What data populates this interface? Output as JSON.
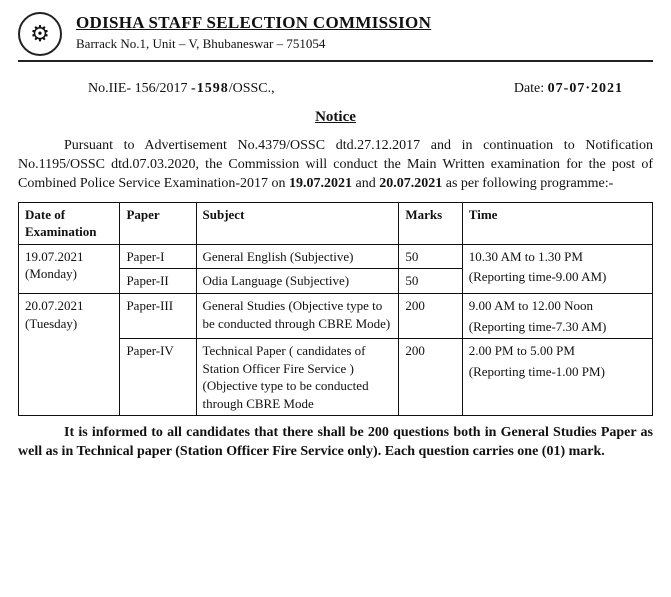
{
  "header": {
    "org": "ODISHA STAFF SELECTION COMMISSION",
    "address": "Barrack No.1, Unit – V, Bhubaneswar – 751054"
  },
  "ref": {
    "left_prefix": "No.IIE- 156/2017",
    "left_hand": "-1598",
    "left_suffix": "/OSSC.,",
    "date_label": "Date:",
    "date_value": "07-07·2021"
  },
  "notice_label": "Notice",
  "body": {
    "para_parts": {
      "p1": "Pursuant to Advertisement No.4379/OSSC dtd.27.12.2017 and  in continuation to Notification No.1195/OSSC dtd.07.03.2020, the Commission will conduct the Main Written examination for the post of Combined Police Service Examination-2017 on ",
      "d1": "19.07.2021",
      "mid": " and ",
      "d2": "20.07.2021",
      "p2": " as per following programme:-"
    }
  },
  "table": {
    "headers": {
      "c1": "Date of Examination",
      "c2": "Paper",
      "c3": "Subject",
      "c4": "Marks",
      "c5": "Time"
    },
    "col_widths": [
      "16%",
      "12%",
      "32%",
      "10%",
      "30%"
    ],
    "rows": [
      {
        "date": "19.07.2021 (Monday)",
        "paper": "Paper-I",
        "subject": "General English (Subjective)",
        "marks": "50",
        "time_main": "10.30 AM to 1.30 PM",
        "time_rep": "(Reporting time-9.00 AM)",
        "date_rowspan": 2,
        "time_rowspan": 2
      },
      {
        "paper": "Paper-II",
        "subject": "Odia Language (Subjective)",
        "marks": "50"
      },
      {
        "date": "20.07.2021 (Tuesday)",
        "paper": "Paper-III",
        "subject": "General Studies (Objective type to be conducted through CBRE Mode)",
        "marks": "200",
        "time_main": "9.00 AM to 12.00 Noon",
        "time_rep": "(Reporting time-7.30 AM)",
        "date_rowspan": 2
      },
      {
        "paper": "Paper-IV",
        "subject": "Technical Paper ( candidates of Station Officer Fire Service ) (Objective type to be conducted through CBRE Mode",
        "marks": "200",
        "time_main": "2.00 PM to 5.00 PM",
        "time_rep": "(Reporting time-1.00 PM)"
      }
    ]
  },
  "footnote": "It is informed to all candidates that there shall be 200 questions both in General Studies Paper as well as in Technical paper (Station Officer Fire Service only). Each question carries one (01) mark."
}
